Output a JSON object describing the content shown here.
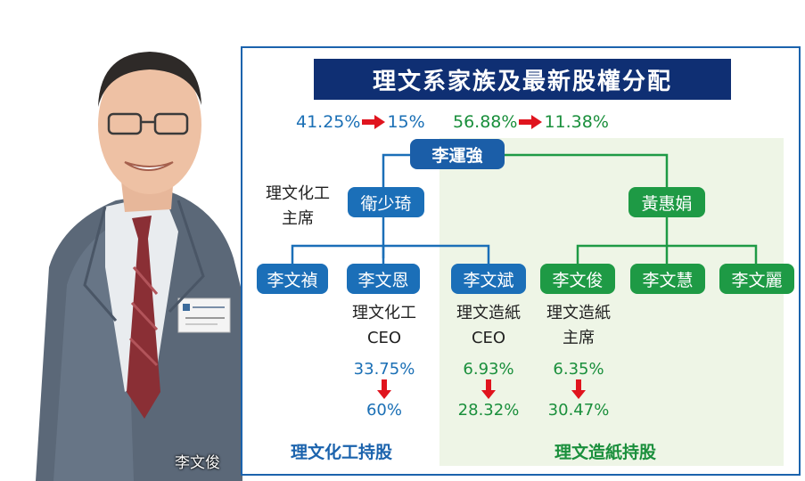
{
  "photo": {
    "caption": "李文俊"
  },
  "title": "理文系家族及最新股權分配",
  "top_stakes": {
    "left": {
      "before": "41.25%",
      "after": "15%"
    },
    "right": {
      "before": "56.88%",
      "after": "11.38%"
    }
  },
  "nodes": {
    "root": "李運強",
    "spouse1": "衛少琦",
    "spouse2": "黃惠娟",
    "c1": "李文禎",
    "c2": "李文恩",
    "c3": "李文斌",
    "c4": "李文俊",
    "c5": "李文慧",
    "c6": "李文麗"
  },
  "role_spouse1": [
    "理文化工",
    "主席"
  ],
  "roles": {
    "c2": [
      "理文化工",
      "CEO"
    ],
    "c3": [
      "理文造紙",
      "CEO"
    ],
    "c4": [
      "理文造紙",
      "主席"
    ]
  },
  "stakes": {
    "c2": {
      "before": "33.75%",
      "after": "60%"
    },
    "c3": {
      "before": "6.93%",
      "after": "28.32%"
    },
    "c4": {
      "before": "6.35%",
      "after": "30.47%"
    }
  },
  "footer": {
    "left": "理文化工持股",
    "right": "理文造紙持股"
  },
  "colors": {
    "blue": "#1b6fb8",
    "green": "#1e9a45",
    "navy": "#0f2f73",
    "arrow_red": "#e0141e"
  }
}
